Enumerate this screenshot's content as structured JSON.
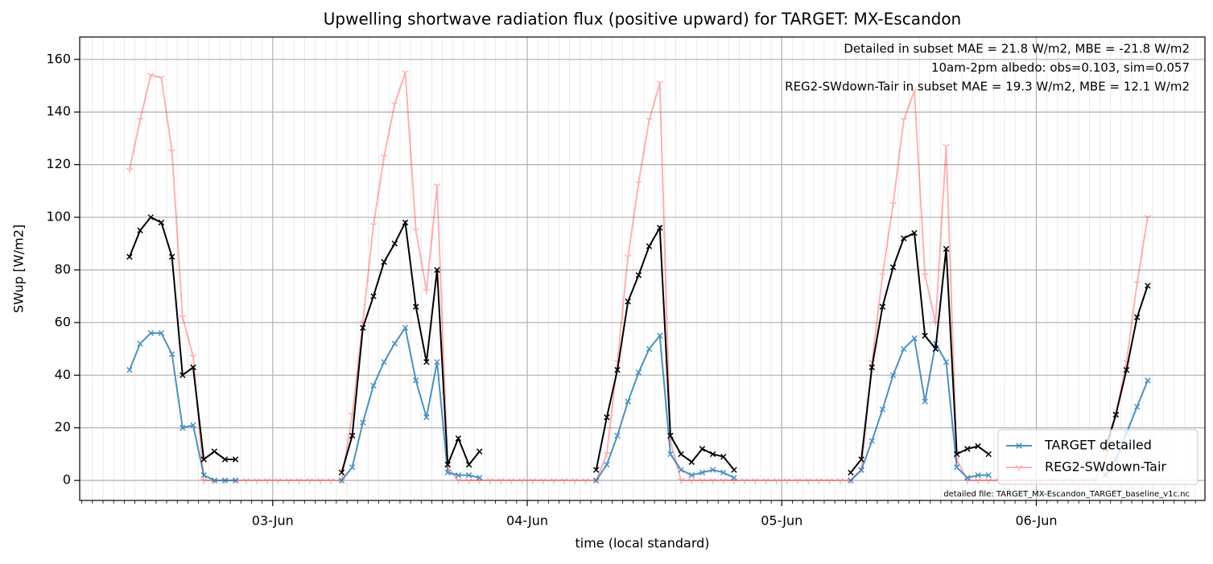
{
  "chart_data": {
    "type": "line",
    "title": "Upwelling shortwave radiation flux (positive upward) for TARGET: MX-Escandon",
    "xlabel": "time (local standard)",
    "ylabel": "SWup [W/m2]",
    "x": [
      10.5,
      11.5,
      12.5,
      13.5,
      14.5,
      15.5,
      16.5,
      17.5,
      18.5,
      19.5,
      20.5,
      21.5,
      22.5,
      23.5,
      24.5,
      25.5,
      26.5,
      27.5,
      28.5,
      29.5,
      30.5,
      31.5,
      32.5,
      33.5,
      34.5,
      35.5,
      36.5,
      37.5,
      38.5,
      39.5,
      40.5,
      41.5,
      42.5,
      43.5,
      44.5,
      45.5,
      46.5,
      47.5,
      48.5,
      49.5,
      50.5,
      51.5,
      52.5,
      53.5,
      54.5,
      55.5,
      56.5,
      57.5,
      58.5,
      59.5,
      60.5,
      61.5,
      62.5,
      63.5,
      64.5,
      65.5,
      66.5,
      67.5,
      68.5,
      69.5,
      70.5,
      71.5,
      72.5,
      73.5,
      74.5,
      75.5,
      76.5,
      77.5,
      78.5,
      79.5,
      80.5,
      81.5,
      82.5,
      83.5,
      84.5,
      85.5,
      86.5,
      87.5,
      88.5,
      89.5,
      90.5,
      91.5,
      92.5,
      93.5,
      94.5,
      95.5,
      96.5,
      97.5,
      98.5,
      99.5,
      100.5,
      101.5,
      102.5,
      103.5,
      104.5,
      105.5,
      106.5
    ],
    "series": [
      {
        "name": "TARGET detailed",
        "color": "#1f77b4",
        "opacity": 0.8,
        "marker": "x",
        "values": [
          42,
          52,
          56,
          56,
          48,
          20,
          21,
          2,
          0,
          0,
          0,
          null,
          null,
          null,
          null,
          null,
          null,
          null,
          null,
          null,
          0,
          5,
          22,
          36,
          45,
          52,
          58,
          38,
          24,
          45,
          3,
          2,
          2,
          1,
          null,
          null,
          null,
          null,
          null,
          null,
          null,
          null,
          null,
          null,
          0,
          6,
          17,
          30,
          41,
          50,
          55,
          10,
          4,
          2,
          3,
          4,
          3,
          1,
          null,
          null,
          null,
          null,
          null,
          null,
          null,
          null,
          null,
          null,
          0,
          4,
          15,
          27,
          40,
          50,
          54,
          30,
          52,
          45,
          5,
          1,
          2,
          2,
          null,
          null,
          null,
          null,
          null,
          null,
          null,
          null,
          null,
          null,
          2,
          8,
          18,
          28,
          38
        ]
      },
      {
        "name": "REG2-SWdown-Tair",
        "color": "#ff0000",
        "opacity": 0.3,
        "marker": "tri",
        "values": [
          118,
          137,
          154,
          153,
          125,
          62,
          47,
          0,
          0,
          0,
          0,
          0,
          0,
          0,
          0,
          0,
          0,
          0,
          0,
          0,
          0,
          25,
          60,
          97,
          123,
          143,
          155,
          95,
          72,
          112,
          5,
          0,
          0,
          0,
          0,
          0,
          0,
          0,
          0,
          0,
          0,
          0,
          0,
          0,
          0,
          10,
          45,
          85,
          113,
          137,
          151,
          15,
          0,
          0,
          0,
          0,
          0,
          0,
          0,
          0,
          0,
          0,
          0,
          0,
          0,
          0,
          0,
          0,
          0,
          4,
          45,
          78,
          105,
          137,
          148,
          78,
          60,
          127,
          8,
          0,
          0,
          0,
          0,
          0,
          0,
          0,
          0,
          0,
          0,
          0,
          0,
          0,
          8,
          25,
          45,
          75,
          100
        ]
      },
      {
        "color": "#000000",
        "opacity": 1,
        "marker": "x",
        "values": [
          85,
          95,
          100,
          98,
          85,
          40,
          43,
          8,
          11,
          8,
          8,
          null,
          null,
          null,
          null,
          null,
          null,
          null,
          null,
          null,
          3,
          17,
          58,
          70,
          83,
          90,
          98,
          66,
          45,
          80,
          6,
          16,
          6,
          11,
          null,
          null,
          null,
          null,
          null,
          null,
          null,
          null,
          null,
          null,
          4,
          24,
          42,
          68,
          78,
          89,
          96,
          17,
          10,
          7,
          12,
          10,
          9,
          4,
          null,
          null,
          null,
          null,
          null,
          null,
          null,
          null,
          null,
          null,
          3,
          8,
          43,
          66,
          81,
          92,
          94,
          55,
          50,
          88,
          10,
          12,
          13,
          10,
          null,
          null,
          null,
          null,
          null,
          null,
          null,
          null,
          null,
          null,
          12,
          25,
          42,
          62,
          74
        ]
      }
    ],
    "xlim": [
      5.8,
      111.9
    ],
    "xticks": [
      {
        "value": 24,
        "label": "03-Jun"
      },
      {
        "value": 48,
        "label": "04-Jun"
      },
      {
        "value": 72,
        "label": "05-Jun"
      },
      {
        "value": 96,
        "label": "06-Jun"
      }
    ],
    "xminorticks": [
      6,
      7,
      8,
      9,
      10,
      11,
      12,
      13,
      14,
      15,
      16,
      17,
      18,
      19,
      20,
      21,
      22,
      23,
      25,
      26,
      27,
      28,
      29,
      30,
      31,
      32,
      33,
      34,
      35,
      36,
      37,
      38,
      39,
      40,
      41,
      42,
      43,
      44,
      45,
      46,
      47,
      49,
      50,
      51,
      52,
      53,
      54,
      55,
      56,
      57,
      58,
      59,
      60,
      61,
      62,
      63,
      64,
      65,
      66,
      67,
      68,
      69,
      70,
      71,
      73,
      74,
      75,
      76,
      77,
      78,
      79,
      80,
      81,
      82,
      83,
      84,
      85,
      86,
      87,
      88,
      89,
      90,
      91,
      92,
      93,
      94,
      95,
      97,
      98,
      99,
      100,
      101,
      102,
      103,
      104,
      105,
      106,
      107,
      108,
      109,
      110,
      111
    ],
    "ylim": [
      -7.6,
      168.5
    ],
    "yticks": [
      0,
      20,
      40,
      60,
      80,
      100,
      120,
      140,
      160
    ],
    "grid": true,
    "legend": "lower right",
    "annotations": [
      {
        "text": "Detailed in subset MAE = 21.8 W/m2, MBE = -21.8 W/m2",
        "color": "#1f77b4"
      },
      {
        "text": "10am-2pm albedo: obs=0.103, sim=0.057",
        "color": "#000000"
      },
      {
        "text": "REG2-SWdown-Tair in subset MAE = 19.3 W/m2, MBE = 12.1 W/m2",
        "color": "#ff0000"
      }
    ],
    "footnote": "detailed file: TARGET_MX-Escandon_TARGET_baseline_v1c.nc"
  }
}
